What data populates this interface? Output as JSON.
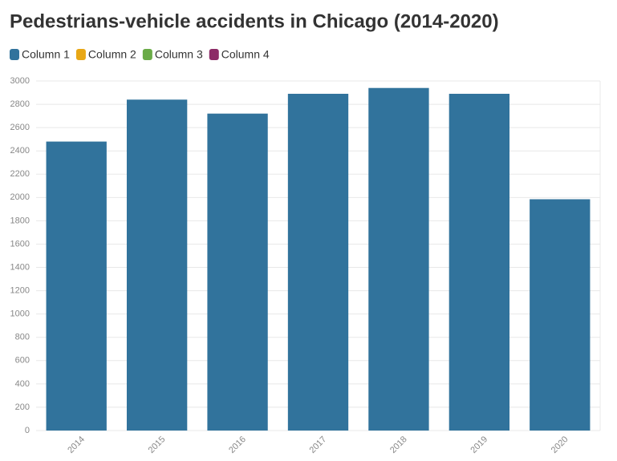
{
  "chart_data": {
    "type": "bar",
    "title": "Pedestrians-vehicle accidents in Chicago (2014-2020)",
    "categories": [
      "2014",
      "2015",
      "2016",
      "2017",
      "2018",
      "2019",
      "2020"
    ],
    "series": [
      {
        "name": "Column 1",
        "color": "#31739c",
        "values": [
          2480,
          2840,
          2720,
          2890,
          2940,
          2890,
          1985
        ]
      },
      {
        "name": "Column 2",
        "color": "#e8a715",
        "values": [
          null,
          null,
          null,
          null,
          null,
          null,
          null
        ]
      },
      {
        "name": "Column 3",
        "color": "#6aab47",
        "values": [
          null,
          null,
          null,
          null,
          null,
          null,
          null
        ]
      },
      {
        "name": "Column 4",
        "color": "#8c2a66",
        "values": [
          null,
          null,
          null,
          null,
          null,
          null,
          null
        ]
      }
    ],
    "ylim": [
      0,
      3000
    ],
    "yticks": [
      0,
      200,
      400,
      600,
      800,
      1000,
      1200,
      1400,
      1600,
      1800,
      2000,
      2200,
      2400,
      2600,
      2800,
      3000
    ],
    "grid": true,
    "legend": "top-left"
  }
}
